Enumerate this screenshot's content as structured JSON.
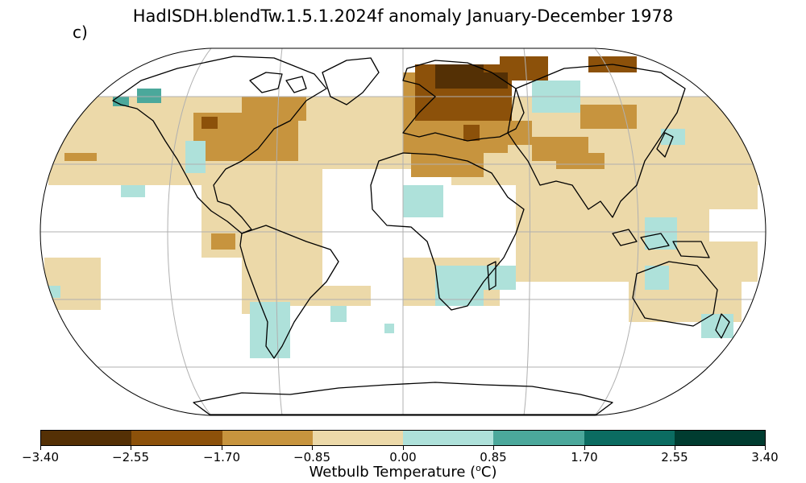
{
  "figure": {
    "title": "HadISDH.blendTw.1.5.1.2024f anomaly January-December 1978",
    "panel_label": "c)"
  },
  "colorbar": {
    "label_text": "Wetbulb Temperature (",
    "label_unit_sup": "o",
    "label_unit_tail": "C)",
    "ticks": [
      "−3.40",
      "−2.55",
      "−1.70",
      "−0.85",
      "0.00",
      "0.85",
      "1.70",
      "2.55",
      "3.40"
    ],
    "colors": [
      "#543005",
      "#8c510a",
      "#c7943e",
      "#ecd9a9",
      "#aee1da",
      "#4ba89b",
      "#0b6c61",
      "#003c30"
    ]
  },
  "map": {
    "projection": "Robinson",
    "graticule_longitudes": [
      -150,
      -90,
      -30,
      30,
      90,
      150
    ],
    "graticule_latitudes": [
      -60,
      -30,
      0,
      30,
      60
    ]
  }
}
